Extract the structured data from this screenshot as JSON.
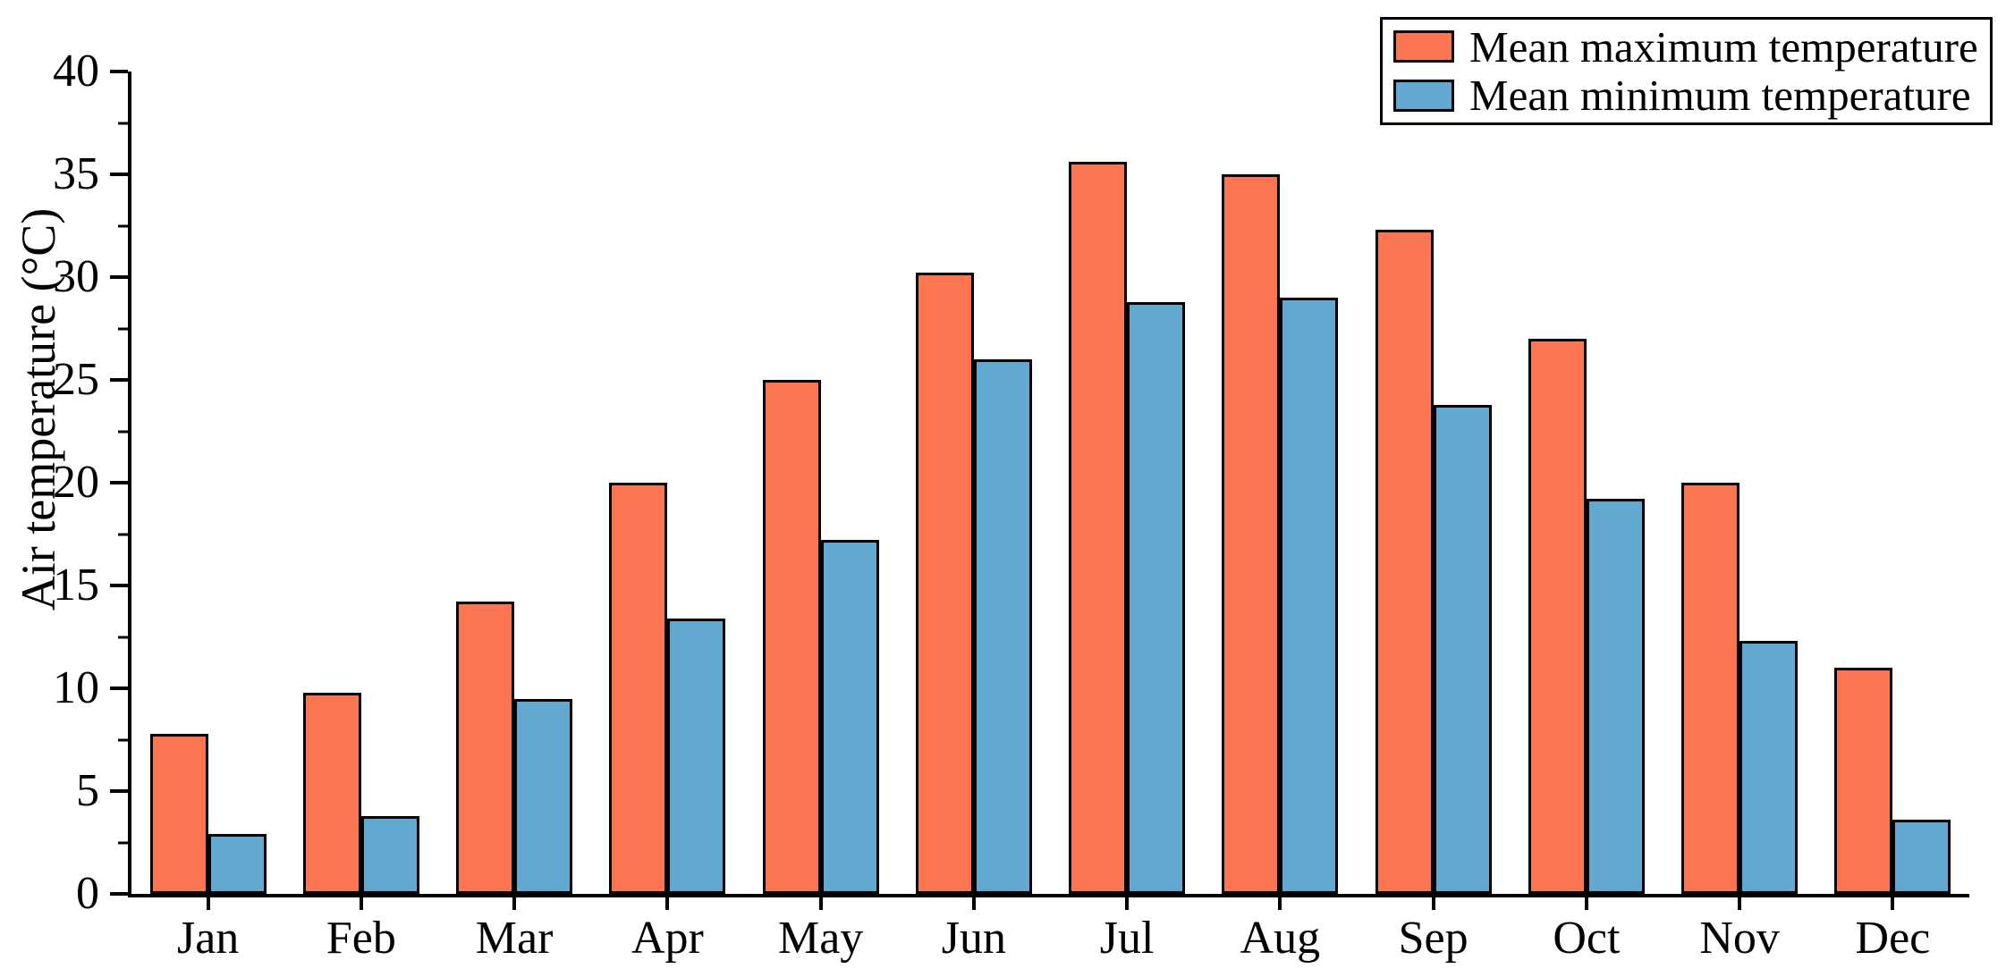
{
  "chart_data": {
    "type": "bar",
    "title": "",
    "xlabel": "",
    "ylabel": "Air temperature (°C)",
    "categories": [
      "Jan",
      "Feb",
      "Mar",
      "Apr",
      "May",
      "Jun",
      "Jul",
      "Aug",
      "Sep",
      "Oct",
      "Nov",
      "Dec"
    ],
    "series": [
      {
        "key": "max",
        "name": "Mean maximum temperature",
        "color": "#FB7650",
        "values": [
          7.8,
          9.8,
          14.2,
          20.0,
          25.0,
          30.2,
          35.6,
          35.0,
          32.3,
          27.0,
          20.0,
          11.0
        ]
      },
      {
        "key": "min",
        "name": "Mean minimum temperature",
        "color": "#62A9D1",
        "values": [
          2.9,
          3.8,
          9.5,
          13.4,
          17.2,
          26.0,
          28.8,
          29.0,
          23.8,
          19.2,
          12.3,
          3.6
        ]
      }
    ],
    "ylim": [
      0,
      40
    ],
    "y_major_step": 5,
    "y_minor_step": 2.5,
    "y_tick_labels": [
      "0",
      "5",
      "10",
      "15",
      "20",
      "25",
      "30",
      "35",
      "40"
    ],
    "grid": false,
    "legend_position": "top-right",
    "bar_edge_color": "#000000",
    "axis_color": "#000000",
    "background_color": "#ffffff"
  }
}
